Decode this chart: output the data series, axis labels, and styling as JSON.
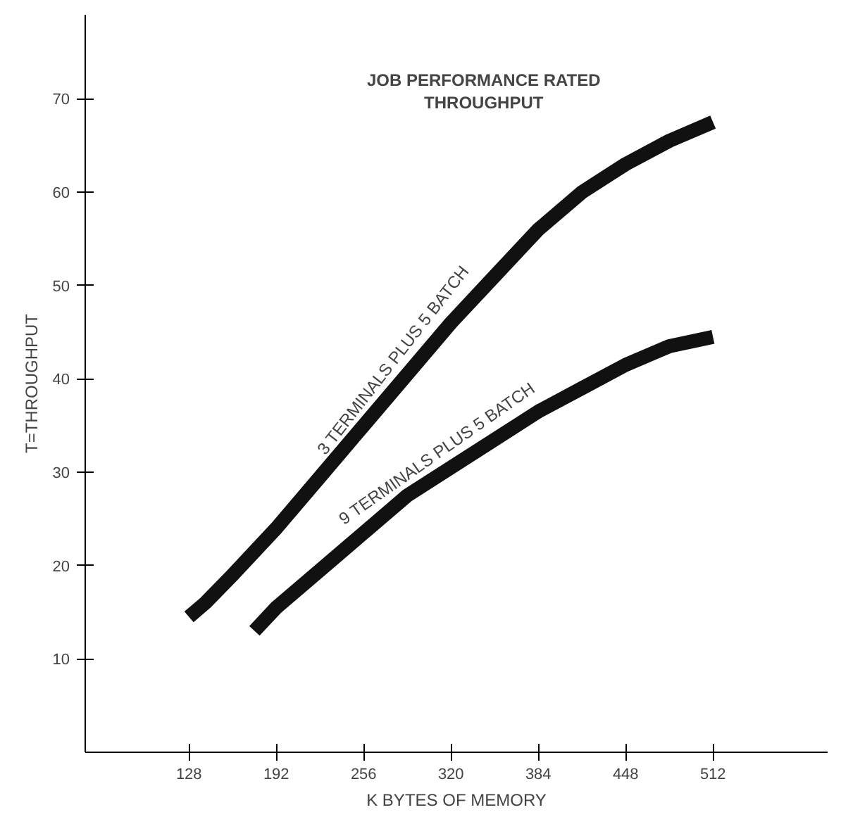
{
  "chart_data": {
    "type": "line",
    "title": "JOB PERFORMANCE RATED\nTHROUGHPUT",
    "xlabel": "K BYTES OF MEMORY",
    "ylabel": "T=THROUGHPUT",
    "series": [
      {
        "color": "#111111",
        "x": [
          128,
          140,
          160,
          192,
          224,
          256,
          288,
          320,
          352,
          384,
          416,
          448,
          480,
          512
        ],
        "values": [
          14.5,
          16,
          19,
          24,
          29.5,
          35,
          40.5,
          46,
          51,
          56,
          60,
          63,
          65.5,
          67.5
        ]
      },
      {
        "color": "#111111",
        "x": [
          176,
          192,
          224,
          256,
          288,
          320,
          352,
          384,
          416,
          448,
          480,
          512
        ],
        "values": [
          13,
          15.5,
          19.5,
          23.5,
          27.5,
          30.5,
          33.5,
          36.5,
          39,
          41.5,
          43.5,
          44.5
        ]
      }
    ],
    "annotations": [
      "3 TERMINALS PLUS 5 BATCH",
      "9 TERMINALS PLUS 5 BATCH"
    ],
    "xlim": [
      52,
      596
    ],
    "ylim": [
      0,
      79
    ],
    "xticks": [
      128,
      192,
      256,
      320,
      384,
      448,
      512
    ],
    "yticks": [
      10,
      20,
      30,
      40,
      50,
      60,
      70
    ],
    "grid": false,
    "marker": "none",
    "line_style": "solid"
  }
}
